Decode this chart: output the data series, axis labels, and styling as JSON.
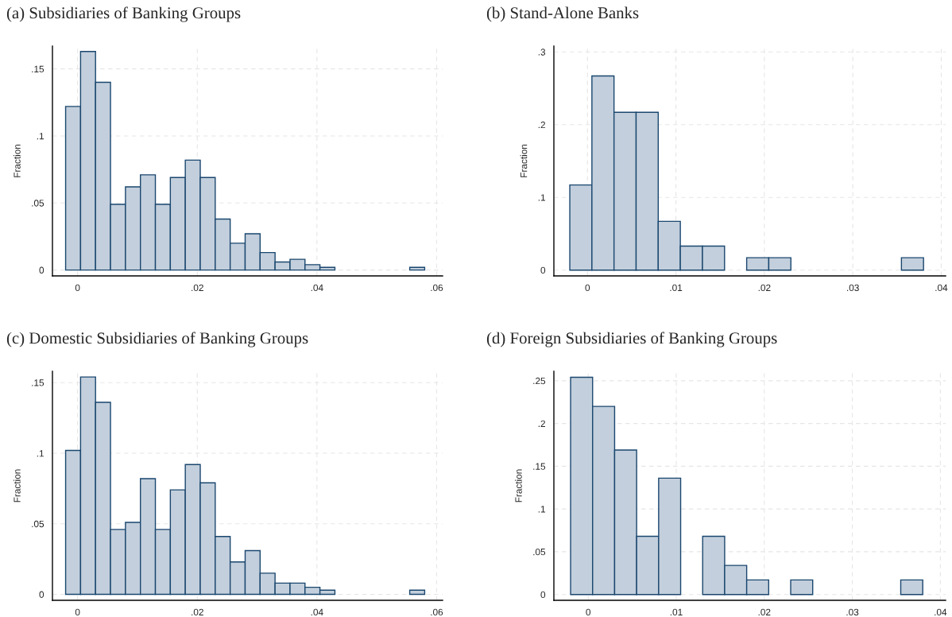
{
  "chart_data": [
    {
      "type": "histogram",
      "title": "(a) Subsidiaries of Banking Groups",
      "ylabel": "Fraction",
      "color": "#c3cfdc",
      "bins": [
        -0.002,
        0.0005,
        0.003,
        0.0055,
        0.008,
        0.0105,
        0.013,
        0.0155,
        0.018,
        0.0205,
        0.023,
        0.0255,
        0.028,
        0.0305,
        0.033,
        0.0355,
        0.038,
        0.0405,
        0.043,
        0.0455,
        0.048,
        0.0505,
        0.053,
        0.0555,
        0.058
      ],
      "values": [
        0.122,
        0.163,
        0.14,
        0.049,
        0.062,
        0.071,
        0.049,
        0.069,
        0.082,
        0.069,
        0.038,
        0.02,
        0.027,
        0.013,
        0.006,
        0.008,
        0.004,
        0.002,
        0,
        0,
        0,
        0,
        0,
        0.002
      ],
      "xlim": [
        -0.0042,
        0.061
      ],
      "ylim": [
        -0.0044,
        0.167
      ],
      "xticks": [
        {
          "value": 0,
          "label": "0"
        },
        {
          "value": 0.02,
          "label": ".02"
        },
        {
          "value": 0.04,
          "label": ".04"
        },
        {
          "value": 0.06,
          "label": ".06"
        }
      ],
      "yticks": [
        {
          "value": 0,
          "label": "0"
        },
        {
          "value": 0.05,
          "label": ".05"
        },
        {
          "value": 0.1,
          "label": ".1"
        },
        {
          "value": 0.15,
          "label": ".15"
        }
      ],
      "grid": true
    },
    {
      "type": "histogram",
      "title": "(b) Stand-Alone Banks",
      "ylabel": "Fraction",
      "color": "#c3cfdc",
      "bins": [
        -0.002,
        0.0005,
        0.003,
        0.0055,
        0.008,
        0.0105,
        0.013,
        0.0155,
        0.018,
        0.0205,
        0.023,
        0.0255,
        0.028,
        0.0305,
        0.033,
        0.0355,
        0.038
      ],
      "values": [
        0.117,
        0.267,
        0.217,
        0.217,
        0.067,
        0.033,
        0.033,
        0,
        0.017,
        0.017,
        0,
        0,
        0,
        0,
        0,
        0.017
      ],
      "xlim": [
        -0.0038,
        0.0405
      ],
      "ylim": [
        -0.008,
        0.308
      ],
      "xticks": [
        {
          "value": 0,
          "label": "0"
        },
        {
          "value": 0.01,
          "label": ".01"
        },
        {
          "value": 0.02,
          "label": ".02"
        },
        {
          "value": 0.03,
          "label": ".03"
        },
        {
          "value": 0.04,
          "label": ".04"
        }
      ],
      "yticks": [
        {
          "value": 0,
          "label": "0"
        },
        {
          "value": 0.1,
          "label": ".1"
        },
        {
          "value": 0.2,
          "label": ".2"
        },
        {
          "value": 0.3,
          "label": ".3"
        }
      ],
      "grid": true
    },
    {
      "type": "histogram",
      "title": "(c) Domestic Subsidiaries of Banking Groups",
      "ylabel": "Fraction",
      "color": "#c3cfdc",
      "bins": [
        -0.002,
        0.0005,
        0.003,
        0.0055,
        0.008,
        0.0105,
        0.013,
        0.0155,
        0.018,
        0.0205,
        0.023,
        0.0255,
        0.028,
        0.0305,
        0.033,
        0.0355,
        0.038,
        0.0405,
        0.043,
        0.0455,
        0.048,
        0.0505,
        0.053,
        0.0555,
        0.058
      ],
      "values": [
        0.102,
        0.154,
        0.136,
        0.046,
        0.051,
        0.082,
        0.046,
        0.074,
        0.092,
        0.079,
        0.041,
        0.023,
        0.031,
        0.015,
        0.008,
        0.008,
        0.005,
        0.003,
        0,
        0,
        0,
        0,
        0,
        0.003
      ],
      "xlim": [
        -0.0042,
        0.061
      ],
      "ylim": [
        -0.0042,
        0.158
      ],
      "xticks": [
        {
          "value": 0,
          "label": "0"
        },
        {
          "value": 0.02,
          "label": ".02"
        },
        {
          "value": 0.04,
          "label": ".04"
        },
        {
          "value": 0.06,
          "label": ".06"
        }
      ],
      "yticks": [
        {
          "value": 0,
          "label": "0"
        },
        {
          "value": 0.05,
          "label": ".05"
        },
        {
          "value": 0.1,
          "label": ".1"
        },
        {
          "value": 0.15,
          "label": ".15"
        }
      ],
      "grid": true
    },
    {
      "type": "histogram",
      "title": "(d) Foreign Subsidiaries of Banking Groups",
      "ylabel": "Fraction",
      "color": "#c3cfdc",
      "bins": [
        -0.002,
        0.0005,
        0.003,
        0.0055,
        0.008,
        0.0105,
        0.013,
        0.0155,
        0.018,
        0.0205,
        0.023,
        0.0255,
        0.028,
        0.0305,
        0.033,
        0.0355,
        0.038
      ],
      "values": [
        0.254,
        0.22,
        0.169,
        0.068,
        0.136,
        0,
        0.068,
        0.034,
        0.017,
        0,
        0.017,
        0,
        0,
        0,
        0,
        0.017
      ],
      "xlim": [
        -0.0039,
        0.0406
      ],
      "ylim": [
        -0.0068,
        0.261
      ],
      "xticks": [
        {
          "value": 0,
          "label": "0"
        },
        {
          "value": 0.01,
          "label": ".01"
        },
        {
          "value": 0.02,
          "label": ".02"
        },
        {
          "value": 0.03,
          "label": ".03"
        },
        {
          "value": 0.04,
          "label": ".04"
        }
      ],
      "yticks": [
        {
          "value": 0,
          "label": "0"
        },
        {
          "value": 0.05,
          "label": ".05"
        },
        {
          "value": 0.1,
          "label": ".1"
        },
        {
          "value": 0.15,
          "label": ".15"
        },
        {
          "value": 0.2,
          "label": ".2"
        },
        {
          "value": 0.25,
          "label": ".25"
        }
      ],
      "grid": true
    }
  ]
}
